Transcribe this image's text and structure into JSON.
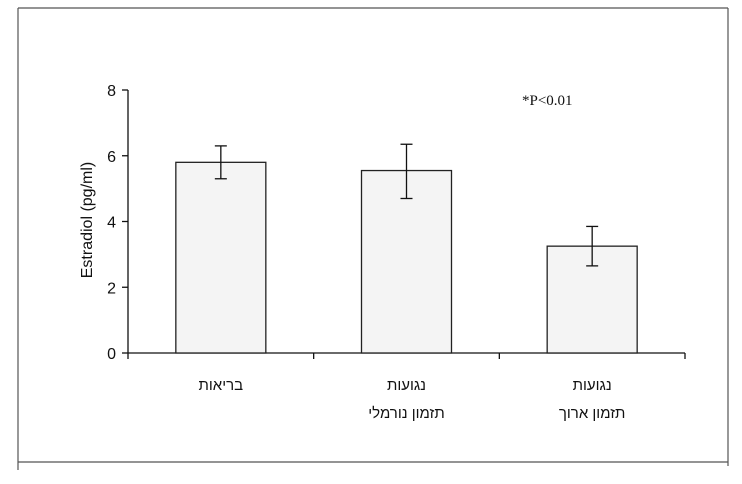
{
  "chart_data": {
    "type": "bar",
    "title": "",
    "xlabel": "",
    "ylabel": "Estradiol (pg/ml)",
    "ylim": [
      0,
      8
    ],
    "yticks": [
      0,
      2,
      4,
      6,
      8
    ],
    "grid": false,
    "annotation": "*P<0.01",
    "categories": [
      {
        "line1": "בריאות",
        "line2": ""
      },
      {
        "line1": "נגועות",
        "line2": "תזמון נורמלי"
      },
      {
        "line1": "נגועות",
        "line2": "תזמון ארוך"
      }
    ],
    "values": [
      5.8,
      5.55,
      3.25
    ],
    "errors": [
      [
        5.3,
        6.3
      ],
      [
        4.7,
        6.35
      ],
      [
        2.65,
        3.85
      ]
    ],
    "bar_color": "#f4f4f4",
    "edge_color": "#222222"
  }
}
